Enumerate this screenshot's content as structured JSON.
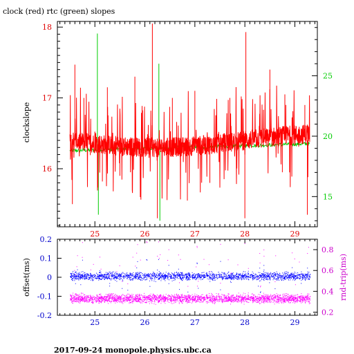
{
  "title": "clock (red) rtc (green) slopes",
  "footer": "2017-09-24 monopole.physics.ubc.ca",
  "chart_data": [
    {
      "type": "line",
      "title": "clock (red) rtc (green) slopes",
      "ylabel": "clockslope",
      "xlabel": "",
      "xlim": [
        24.25,
        29.45
      ],
      "x_ticks": [
        "25",
        "26",
        "27",
        "28",
        "29"
      ],
      "ylim_left": [
        15.18,
        18.08
      ],
      "y_ticks_left": [
        "16",
        "17",
        "18"
      ],
      "ylim_right": [
        12.5,
        29.5
      ],
      "y_ticks_right": [
        "15",
        "20",
        "25"
      ],
      "series": [
        {
          "name": "clock (red)",
          "color": "#ff0000",
          "axis": "left",
          "baseline": 16.4,
          "x_range": [
            24.5,
            29.3
          ],
          "spikes": [
            {
              "x": 24.55,
              "value": 15.5
            },
            {
              "x": 24.6,
              "value": 17.47
            },
            {
              "x": 24.78,
              "value": 17.0
            },
            {
              "x": 25.15,
              "value": 15.82
            },
            {
              "x": 25.25,
              "value": 17.15
            },
            {
              "x": 25.5,
              "value": 15.9
            },
            {
              "x": 25.8,
              "value": 17.3
            },
            {
              "x": 26.15,
              "value": 18.05
            },
            {
              "x": 26.25,
              "value": 15.3
            },
            {
              "x": 26.55,
              "value": 17.0
            },
            {
              "x": 26.85,
              "value": 15.55
            },
            {
              "x": 27.0,
              "value": 17.1
            },
            {
              "x": 27.3,
              "value": 15.8
            },
            {
              "x": 27.7,
              "value": 17.0
            },
            {
              "x": 28.02,
              "value": 17.93
            },
            {
              "x": 28.0,
              "value": 15.3
            },
            {
              "x": 28.5,
              "value": 17.4
            },
            {
              "x": 28.75,
              "value": 15.95
            },
            {
              "x": 28.8,
              "value": 17.05
            },
            {
              "x": 29.25,
              "value": 15.35
            },
            {
              "x": 29.2,
              "value": 16.9
            }
          ]
        },
        {
          "name": "rtc (green)",
          "color": "#00cc00",
          "axis": "right",
          "baseline": 18.8,
          "x_range": [
            24.5,
            29.3
          ],
          "spikes": [
            {
              "x": 25.05,
              "value": 28.5
            },
            {
              "x": 25.07,
              "value": 13.5
            },
            {
              "x": 26.28,
              "value": 26.0
            },
            {
              "x": 26.3,
              "value": 13.0
            }
          ]
        }
      ]
    },
    {
      "type": "scatter",
      "ylabel_left": "offset(ms)",
      "ylabel_right": "rnd-trip(ms)",
      "xlim": [
        24.25,
        29.45
      ],
      "x_ticks": [
        "25",
        "26",
        "27",
        "28",
        "29"
      ],
      "ylim_left": [
        -0.2,
        0.2
      ],
      "y_ticks_left": [
        "0.2",
        "0.1",
        "0",
        "-0.1",
        "-0.2"
      ],
      "ylim_right": [
        0.17,
        0.9
      ],
      "y_ticks_right": [
        "0.8",
        "0.6",
        "0.4",
        "0.2"
      ],
      "series": [
        {
          "name": "offset",
          "color": "#0000ff",
          "axis": "left",
          "center": 0.005,
          "spread": 0.03,
          "x_range": [
            24.5,
            29.3
          ]
        },
        {
          "name": "rnd-trip",
          "color": "#ff00ff",
          "axis": "right",
          "center": 0.33,
          "spread": 0.06,
          "x_range": [
            24.5,
            29.3
          ]
        }
      ]
    }
  ]
}
